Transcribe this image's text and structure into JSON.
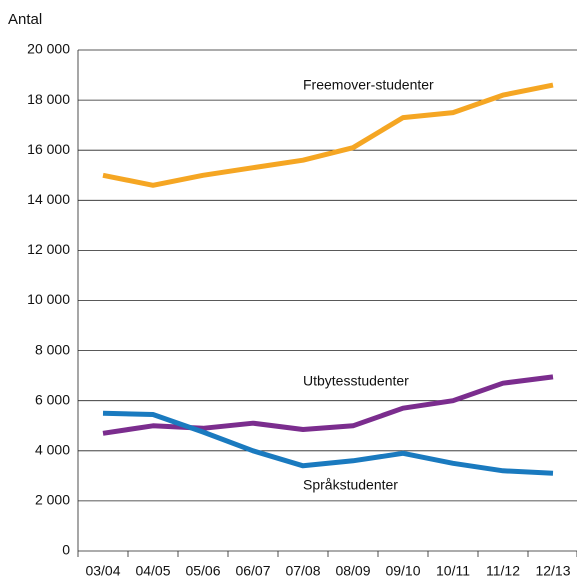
{
  "chart_data": {
    "type": "line",
    "y_label": "Antal",
    "categories": [
      "03/04",
      "04/05",
      "05/06",
      "06/07",
      "07/08",
      "08/09",
      "09/10",
      "10/11",
      "11/12",
      "12/13"
    ],
    "series": [
      {
        "name": "Freemover-studenter",
        "color": "#f5a623",
        "values": [
          15000,
          14600,
          15000,
          15300,
          15600,
          16100,
          17300,
          17500,
          18200,
          18600
        ]
      },
      {
        "name": "Utbytesstudenter",
        "color": "#7b2d8e",
        "values": [
          4700,
          5000,
          4900,
          5100,
          4850,
          5000,
          5700,
          6000,
          6700,
          6950
        ]
      },
      {
        "name": "Språkstudenter",
        "color": "#1a7abf",
        "values": [
          5500,
          5450,
          4750,
          4000,
          3400,
          3600,
          3900,
          3500,
          3200,
          3100
        ]
      }
    ],
    "ylim": [
      0,
      20000
    ],
    "yticks": [
      0,
      {
        "value": 2000,
        "label": "2 000"
      },
      {
        "value": 4000,
        "label": "4 000"
      },
      {
        "value": 6000,
        "label": "6 000"
      },
      {
        "value": 8000,
        "label": "8 000"
      },
      {
        "value": 10000,
        "label": "10 000"
      },
      {
        "value": 12000,
        "label": "12 000"
      },
      {
        "value": 14000,
        "label": "14 000"
      },
      {
        "value": 16000,
        "label": "16 000"
      },
      {
        "value": 18000,
        "label": "18 000"
      },
      {
        "value": 20000,
        "label": "20 000"
      }
    ],
    "grid": true
  }
}
